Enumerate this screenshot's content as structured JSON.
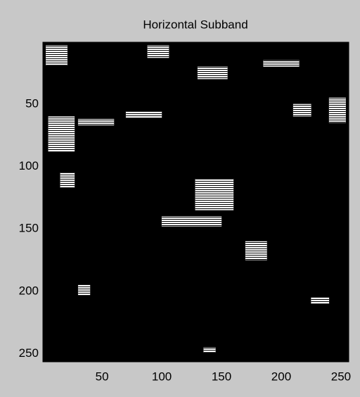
{
  "chart_data": {
    "type": "image",
    "title": "Horizontal Subband",
    "xlim": [
      0.5,
      256.5
    ],
    "ylim": [
      0.5,
      256.5
    ],
    "xticks": [
      50,
      100,
      150,
      200,
      250
    ],
    "yticks": [
      50,
      100,
      150,
      200,
      250
    ],
    "background": "#000000",
    "color": "#ffffff",
    "bright_regions": [
      {
        "x": 3,
        "y": 3,
        "w": 18,
        "h": 16
      },
      {
        "x": 5,
        "y": 60,
        "w": 22,
        "h": 28
      },
      {
        "x": 30,
        "y": 62,
        "w": 30,
        "h": 5
      },
      {
        "x": 70,
        "y": 56,
        "w": 30,
        "h": 5
      },
      {
        "x": 88,
        "y": 3,
        "w": 18,
        "h": 10
      },
      {
        "x": 130,
        "y": 20,
        "w": 25,
        "h": 10
      },
      {
        "x": 185,
        "y": 15,
        "w": 30,
        "h": 5
      },
      {
        "x": 240,
        "y": 45,
        "w": 14,
        "h": 20
      },
      {
        "x": 128,
        "y": 110,
        "w": 32,
        "h": 25
      },
      {
        "x": 100,
        "y": 140,
        "w": 50,
        "h": 8
      },
      {
        "x": 15,
        "y": 105,
        "w": 12,
        "h": 12
      },
      {
        "x": 170,
        "y": 160,
        "w": 18,
        "h": 15
      },
      {
        "x": 30,
        "y": 195,
        "w": 10,
        "h": 8
      },
      {
        "x": 225,
        "y": 205,
        "w": 15,
        "h": 5
      },
      {
        "x": 135,
        "y": 245,
        "w": 10,
        "h": 4
      },
      {
        "x": 210,
        "y": 50,
        "w": 15,
        "h": 10
      }
    ]
  }
}
